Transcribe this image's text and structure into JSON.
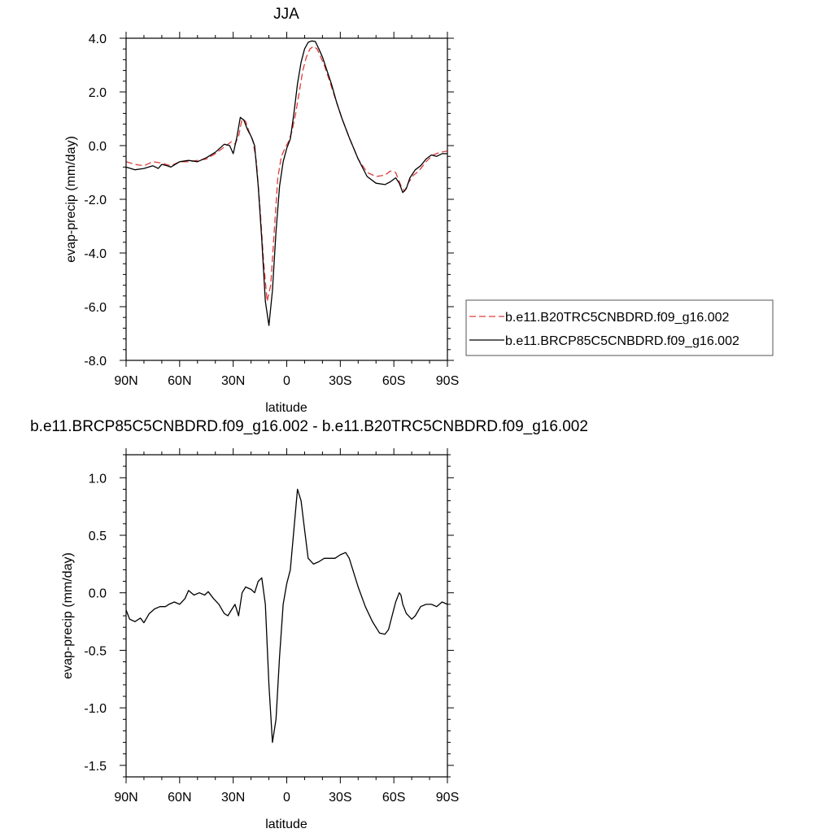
{
  "chart_data": [
    {
      "type": "line",
      "title": "JJA",
      "xlabel": "latitude",
      "ylabel": "evap-precip (mm/day)",
      "xlim": [
        90,
        -90
      ],
      "ylim": [
        -8,
        4
      ],
      "xticks": [
        {
          "value": 90,
          "label": "90N"
        },
        {
          "value": 60,
          "label": "60N"
        },
        {
          "value": 30,
          "label": "30N"
        },
        {
          "value": 0,
          "label": "0"
        },
        {
          "value": -30,
          "label": "30S"
        },
        {
          "value": -60,
          "label": "60S"
        },
        {
          "value": -90,
          "label": "90S"
        }
      ],
      "yticks": [
        {
          "value": 4,
          "label": "4.0"
        },
        {
          "value": 2,
          "label": "2.0"
        },
        {
          "value": 0,
          "label": "0.0"
        },
        {
          "value": -2,
          "label": "-2.0"
        },
        {
          "value": -4,
          "label": "-4.0"
        },
        {
          "value": -6,
          "label": "-6.0"
        },
        {
          "value": -8,
          "label": "-8.0"
        }
      ],
      "legend": "right",
      "series": [
        {
          "name": "b.e11.B20TRC5CNBDRD.f09_g16.002",
          "color": "#e03c3c",
          "dash": "dashed",
          "x": [
            90,
            85,
            80,
            75,
            70,
            65,
            60,
            55,
            50,
            45,
            40,
            35,
            31,
            29,
            27,
            25,
            23,
            21,
            19,
            17,
            15,
            13,
            11,
            9,
            7,
            5,
            3,
            1,
            -1,
            -3,
            -5,
            -7,
            -9,
            -11,
            -13,
            -15,
            -17,
            -19,
            -21,
            -23,
            -25,
            -28,
            -31,
            -35,
            -40,
            -45,
            -50,
            -55,
            -58,
            -61,
            -64,
            -66,
            -68,
            -71,
            -74,
            -78,
            -82,
            -86,
            -90
          ],
          "y": [
            -0.6,
            -0.7,
            -0.75,
            -0.6,
            -0.65,
            -0.75,
            -0.6,
            -0.6,
            -0.55,
            -0.5,
            -0.3,
            -0.05,
            0.15,
            0.05,
            0.35,
            1.0,
            0.9,
            0.5,
            0.2,
            -0.6,
            -2.3,
            -4.3,
            -5.8,
            -5.2,
            -3.2,
            -1.2,
            -0.4,
            -0.1,
            0.15,
            0.55,
            1.2,
            2.0,
            2.8,
            3.3,
            3.6,
            3.7,
            3.6,
            3.3,
            3.0,
            2.6,
            2.2,
            1.6,
            1.0,
            0.3,
            -0.5,
            -1.0,
            -1.15,
            -1.1,
            -0.95,
            -1.0,
            -1.5,
            -1.7,
            -1.4,
            -1.1,
            -0.95,
            -0.6,
            -0.35,
            -0.25,
            -0.2
          ]
        },
        {
          "name": "b.e11.BRCP85C5CNBDRD.f09_g16.002",
          "color": "#000000",
          "dash": "solid",
          "x": [
            90,
            85,
            80,
            75,
            72,
            70,
            67,
            65,
            60,
            55,
            50,
            45,
            40,
            35,
            32,
            30,
            28,
            26,
            24,
            22,
            20,
            18,
            16,
            14,
            12,
            10,
            8,
            6,
            4,
            2,
            0,
            -2,
            -4,
            -6,
            -8,
            -10,
            -12,
            -14,
            -16,
            -18,
            -20,
            -22,
            -25,
            -28,
            -31,
            -35,
            -40,
            -45,
            -50,
            -55,
            -58,
            -61,
            -63,
            -65,
            -67,
            -69,
            -72,
            -75,
            -78,
            -81,
            -84,
            -87,
            -90
          ],
          "y": [
            -0.8,
            -0.9,
            -0.85,
            -0.75,
            -0.85,
            -0.7,
            -0.75,
            -0.8,
            -0.6,
            -0.55,
            -0.6,
            -0.45,
            -0.25,
            0.05,
            0.0,
            -0.3,
            0.3,
            1.05,
            0.95,
            0.6,
            0.35,
            0.0,
            -1.5,
            -3.5,
            -5.8,
            -6.7,
            -5.4,
            -3.2,
            -1.5,
            -0.6,
            -0.1,
            0.25,
            1.2,
            2.3,
            3.1,
            3.6,
            3.85,
            3.9,
            3.88,
            3.6,
            3.3,
            2.9,
            2.3,
            1.6,
            1.0,
            0.3,
            -0.5,
            -1.15,
            -1.4,
            -1.45,
            -1.35,
            -1.2,
            -1.4,
            -1.75,
            -1.6,
            -1.2,
            -0.9,
            -0.75,
            -0.5,
            -0.35,
            -0.4,
            -0.3,
            -0.3
          ]
        }
      ]
    },
    {
      "type": "line",
      "title": "b.e11.BRCP85C5CNBDRD.f09_g16.002 - b.e11.B20TRC5CNBDRD.f09_g16.002",
      "xlabel": "latitude",
      "ylabel": "evap-precip (mm/day)",
      "xlim": [
        90,
        -90
      ],
      "ylim": [
        -1.6,
        1.2
      ],
      "xticks": [
        {
          "value": 90,
          "label": "90N"
        },
        {
          "value": 60,
          "label": "60N"
        },
        {
          "value": 30,
          "label": "30N"
        },
        {
          "value": 0,
          "label": "0"
        },
        {
          "value": -30,
          "label": "30S"
        },
        {
          "value": -60,
          "label": "60S"
        },
        {
          "value": -90,
          "label": "90S"
        }
      ],
      "yticks": [
        {
          "value": 1.0,
          "label": "1.0"
        },
        {
          "value": 0.5,
          "label": "0.5"
        },
        {
          "value": 0.0,
          "label": "0.0"
        },
        {
          "value": -0.5,
          "label": "-0.5"
        },
        {
          "value": -1.0,
          "label": "-1.0"
        },
        {
          "value": -1.5,
          "label": "-1.5"
        }
      ],
      "series": [
        {
          "color": "#000000",
          "dash": "solid",
          "x": [
            90,
            88,
            85,
            82,
            80,
            77,
            74,
            71,
            68,
            66,
            63,
            60,
            57,
            55,
            52,
            49,
            46,
            44,
            41,
            38,
            35,
            33,
            31,
            29,
            27,
            25,
            23,
            20,
            18,
            16,
            14,
            12,
            10,
            8,
            6,
            4,
            2,
            0,
            -2,
            -4,
            -6,
            -8,
            -10,
            -12,
            -15,
            -18,
            -21,
            -24,
            -27,
            -30,
            -33,
            -35,
            -37,
            -40,
            -44,
            -48,
            -52,
            -55,
            -57,
            -59,
            -61,
            -63,
            -64,
            -65,
            -67,
            -70,
            -72,
            -75,
            -78,
            -81,
            -84,
            -87,
            -90
          ],
          "y": [
            -0.15,
            -0.23,
            -0.25,
            -0.22,
            -0.26,
            -0.18,
            -0.14,
            -0.12,
            -0.12,
            -0.1,
            -0.08,
            -0.1,
            -0.05,
            0.02,
            -0.02,
            0.0,
            -0.02,
            0.01,
            -0.05,
            -0.1,
            -0.18,
            -0.2,
            -0.15,
            -0.1,
            -0.2,
            0.0,
            0.05,
            0.03,
            0.0,
            0.1,
            0.13,
            -0.1,
            -0.8,
            -1.3,
            -1.1,
            -0.55,
            -0.1,
            0.08,
            0.2,
            0.55,
            0.9,
            0.8,
            0.55,
            0.3,
            0.25,
            0.27,
            0.3,
            0.3,
            0.3,
            0.33,
            0.35,
            0.3,
            0.2,
            0.05,
            -0.12,
            -0.25,
            -0.35,
            -0.36,
            -0.32,
            -0.2,
            -0.08,
            0.0,
            -0.02,
            -0.1,
            -0.18,
            -0.23,
            -0.2,
            -0.12,
            -0.1,
            -0.1,
            -0.12,
            -0.08,
            -0.1
          ]
        }
      ]
    }
  ]
}
